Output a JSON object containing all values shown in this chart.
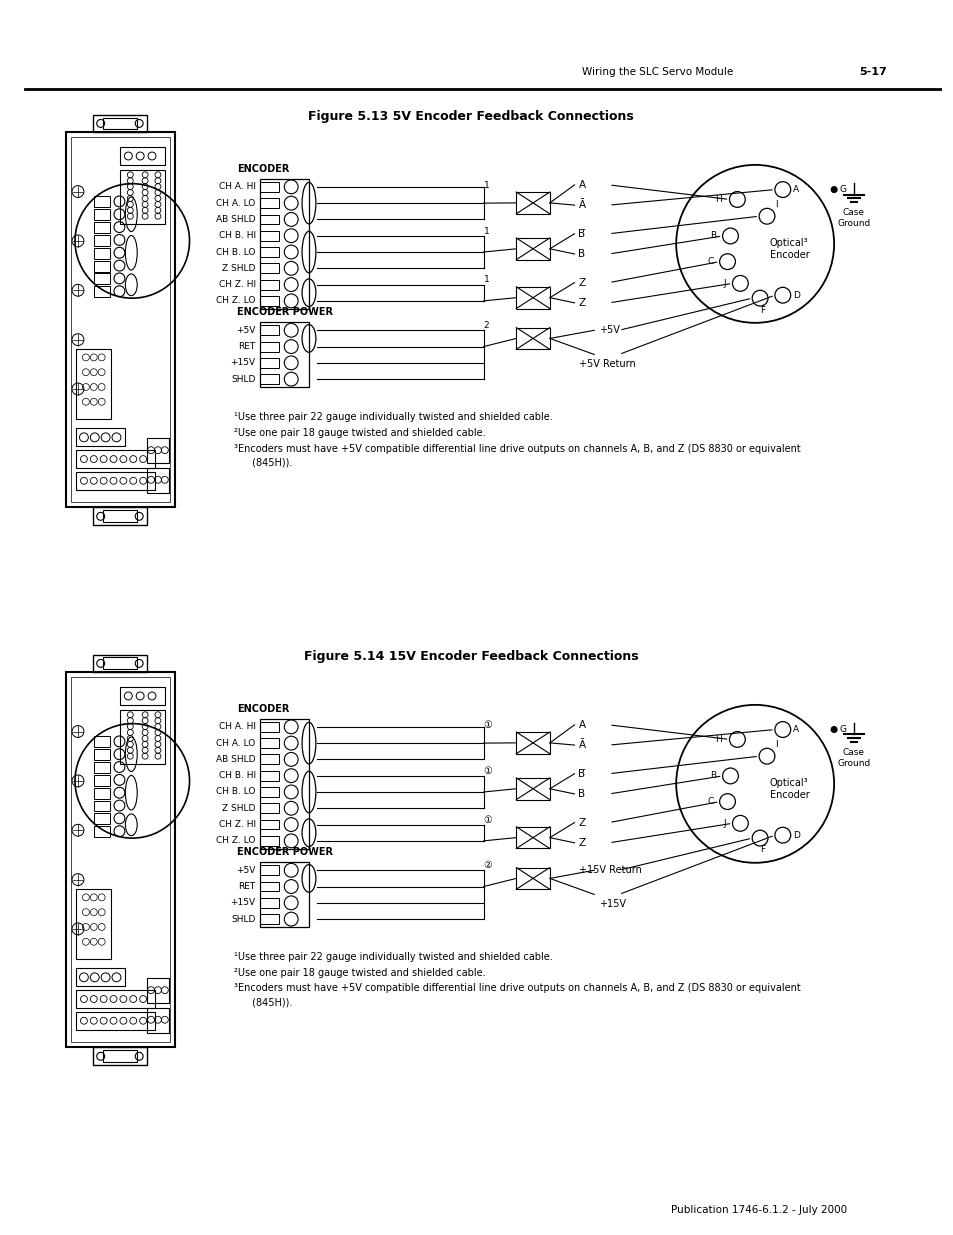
{
  "title1": "Figure 5.13 5V Encoder Feedback Connections",
  "title2": "Figure 5.14 15V Encoder Feedback Connections",
  "header_right": "Wiring the SLC Servo Module",
  "header_page": "5-17",
  "footer": "Publication 1746-6.1.2 - July 2000",
  "encoder_labels": [
    "CH A. HI",
    "CH A. LO",
    "AB SHLD",
    "CH B. HI",
    "CH B. LO",
    "Z SHLD",
    "CH Z. HI",
    "CH Z. LO"
  ],
  "power_labels": [
    "+5V",
    "RET",
    "+15V",
    "SHLD"
  ],
  "note1": "  Use three pair 22 gauge individually twisted and shielded cable.",
  "note2": "  Use one pair 18 gauge twisted and shielded cable.",
  "note3": "  Encoders must have +5V compatible differential line drive outputs on channels A, B, and Z (DS 8830 or equivalent",
  "note3b": "   (845H)).",
  "optical_encoder_1": "Optical³\nEncoder",
  "optical_encoder_2": "Optical³\nEncoder",
  "case_ground": "Case\nGround",
  "encoder_power_label": "ENCODER POWER",
  "encoder_label": "ENCODER",
  "bg_color": "#ffffff"
}
